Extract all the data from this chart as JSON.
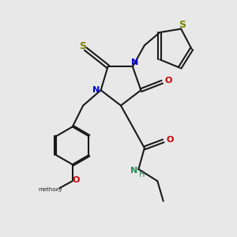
{
  "bg_color": "#e8e8e8",
  "bond_color": "#1a1a1a",
  "N_color": "#0000cc",
  "O_color": "#cc0000",
  "S_color": "#808000",
  "NH_color": "#2e8b57",
  "line_width": 1.5,
  "fig_w": 3.0,
  "fig_h": 3.0,
  "dpi": 100,
  "xlim": [
    0,
    10
  ],
  "ylim": [
    0,
    10
  ]
}
